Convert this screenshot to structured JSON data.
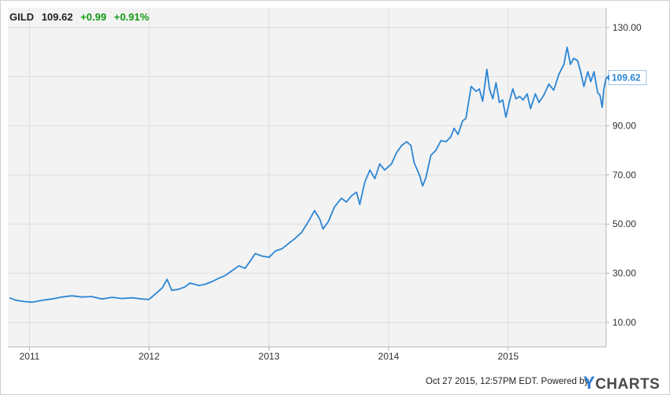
{
  "header": {
    "ticker": "GILD",
    "price": "109.62",
    "change": "+0.99",
    "change_pct": "+0.91%",
    "change_color": "#119911"
  },
  "footer": {
    "timestamp": "Oct 27 2015, 12:57PM EDT.",
    "powered_by": "Powered by",
    "brand_y": "Y",
    "brand_rest": "CHARTS"
  },
  "colors": {
    "line": "#2c86d4",
    "plot_bg": "#f3f3f3",
    "grid": "#dcdcdc",
    "last_label_text": "#2c86d4"
  },
  "chart_data": {
    "type": "line",
    "series": [
      {
        "last_value_label": "109.62",
        "points": [
          [
            "2010-11-01",
            20.0
          ],
          [
            "2010-11-20",
            19.0
          ],
          [
            "2010-12-15",
            18.5
          ],
          [
            "2011-01-10",
            18.2
          ],
          [
            "2011-02-10",
            19.0
          ],
          [
            "2011-03-10",
            19.5
          ],
          [
            "2011-04-10",
            20.3
          ],
          [
            "2011-05-10",
            20.8
          ],
          [
            "2011-06-10",
            20.3
          ],
          [
            "2011-07-10",
            20.5
          ],
          [
            "2011-08-10",
            19.5
          ],
          [
            "2011-09-10",
            20.2
          ],
          [
            "2011-10-10",
            19.7
          ],
          [
            "2011-11-10",
            20.0
          ],
          [
            "2011-12-10",
            19.5
          ],
          [
            "2011-12-31",
            19.3
          ],
          [
            "2012-01-20",
            21.5
          ],
          [
            "2012-02-10",
            24.0
          ],
          [
            "2012-02-25",
            27.5
          ],
          [
            "2012-03-10",
            23.0
          ],
          [
            "2012-04-01",
            23.5
          ],
          [
            "2012-04-20",
            24.5
          ],
          [
            "2012-05-05",
            26.0
          ],
          [
            "2012-06-01",
            25.0
          ],
          [
            "2012-06-20",
            25.5
          ],
          [
            "2012-07-10",
            26.5
          ],
          [
            "2012-08-01",
            28.0
          ],
          [
            "2012-08-20",
            29.0
          ],
          [
            "2012-09-10",
            31.0
          ],
          [
            "2012-10-01",
            33.0
          ],
          [
            "2012-10-20",
            32.0
          ],
          [
            "2012-11-05",
            35.0
          ],
          [
            "2012-11-20",
            38.0
          ],
          [
            "2012-12-10",
            37.0
          ],
          [
            "2013-01-01",
            36.5
          ],
          [
            "2013-01-20",
            39.0
          ],
          [
            "2013-02-10",
            40.0
          ],
          [
            "2013-03-01",
            42.0
          ],
          [
            "2013-03-20",
            44.0
          ],
          [
            "2013-04-10",
            46.5
          ],
          [
            "2013-05-01",
            51.0
          ],
          [
            "2013-05-20",
            55.5
          ],
          [
            "2013-06-05",
            52.0
          ],
          [
            "2013-06-15",
            48.0
          ],
          [
            "2013-07-01",
            51.0
          ],
          [
            "2013-07-20",
            57.0
          ],
          [
            "2013-08-10",
            60.5
          ],
          [
            "2013-08-25",
            59.0
          ],
          [
            "2013-09-10",
            61.5
          ],
          [
            "2013-09-25",
            63.0
          ],
          [
            "2013-10-05",
            58.0
          ],
          [
            "2013-10-20",
            67.0
          ],
          [
            "2013-11-05",
            72.0
          ],
          [
            "2013-11-20",
            68.5
          ],
          [
            "2013-12-05",
            74.5
          ],
          [
            "2013-12-20",
            72.0
          ],
          [
            "2014-01-10",
            74.5
          ],
          [
            "2014-01-25",
            79.0
          ],
          [
            "2014-02-10",
            82.0
          ],
          [
            "2014-02-25",
            83.5
          ],
          [
            "2014-03-10",
            82.0
          ],
          [
            "2014-03-20",
            75.0
          ],
          [
            "2014-04-05",
            70.0
          ],
          [
            "2014-04-15",
            65.5
          ],
          [
            "2014-04-25",
            69.0
          ],
          [
            "2014-05-10",
            78.0
          ],
          [
            "2014-05-25",
            80.0
          ],
          [
            "2014-06-10",
            84.0
          ],
          [
            "2014-06-25",
            83.5
          ],
          [
            "2014-07-10",
            85.5
          ],
          [
            "2014-07-20",
            89.0
          ],
          [
            "2014-08-01",
            86.5
          ],
          [
            "2014-08-15",
            92.0
          ],
          [
            "2014-08-25",
            93.0
          ],
          [
            "2014-09-10",
            106.0
          ],
          [
            "2014-09-25",
            104.0
          ],
          [
            "2014-10-05",
            105.0
          ],
          [
            "2014-10-15",
            100.0
          ],
          [
            "2014-10-28",
            113.0
          ],
          [
            "2014-11-05",
            105.0
          ],
          [
            "2014-11-15",
            101.0
          ],
          [
            "2014-11-25",
            107.5
          ],
          [
            "2014-12-05",
            99.5
          ],
          [
            "2014-12-15",
            100.5
          ],
          [
            "2014-12-25",
            93.5
          ],
          [
            "2015-01-05",
            100.0
          ],
          [
            "2015-01-15",
            105.0
          ],
          [
            "2015-01-25",
            101.0
          ],
          [
            "2015-02-05",
            102.0
          ],
          [
            "2015-02-15",
            100.5
          ],
          [
            "2015-02-28",
            103.0
          ],
          [
            "2015-03-10",
            97.0
          ],
          [
            "2015-03-25",
            103.0
          ],
          [
            "2015-04-05",
            99.5
          ],
          [
            "2015-04-20",
            102.5
          ],
          [
            "2015-05-05",
            107.0
          ],
          [
            "2015-05-20",
            104.5
          ],
          [
            "2015-06-05",
            111.0
          ],
          [
            "2015-06-20",
            115.0
          ],
          [
            "2015-06-30",
            122.0
          ],
          [
            "2015-07-10",
            115.0
          ],
          [
            "2015-07-20",
            117.5
          ],
          [
            "2015-08-01",
            116.5
          ],
          [
            "2015-08-10",
            112.0
          ],
          [
            "2015-08-20",
            106.0
          ],
          [
            "2015-09-01",
            112.0
          ],
          [
            "2015-09-10",
            108.0
          ],
          [
            "2015-09-20",
            112.0
          ],
          [
            "2015-10-01",
            103.5
          ],
          [
            "2015-10-08",
            102.5
          ],
          [
            "2015-10-15",
            97.5
          ],
          [
            "2015-10-20",
            105.0
          ],
          [
            "2015-10-27",
            109.62
          ]
        ]
      }
    ],
    "x_tick_labels": [
      {
        "label": "2011",
        "date": "2011-01-01"
      },
      {
        "label": "2012",
        "date": "2012-01-01"
      },
      {
        "label": "2013",
        "date": "2013-01-01"
      },
      {
        "label": "2014",
        "date": "2014-01-01"
      },
      {
        "label": "2015",
        "date": "2015-01-01"
      }
    ],
    "y_ticks": [
      10,
      30,
      50,
      70,
      90,
      130
    ],
    "y_tick_labels": [
      "10.00",
      "30.00",
      "50.00",
      "70.00",
      "90.00",
      "130.00"
    ],
    "xlim": [
      "2010-10-27",
      "2015-10-27"
    ],
    "ylim": [
      0,
      138
    ],
    "grid": true,
    "y_axis_side": "right"
  }
}
